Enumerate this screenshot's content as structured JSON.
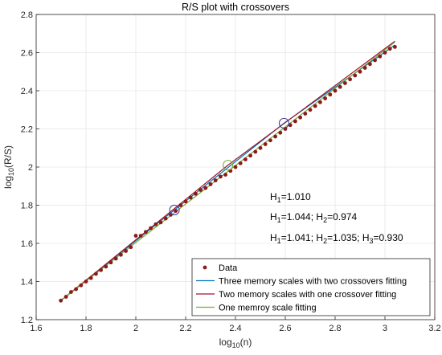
{
  "chart_data": {
    "type": "scatter",
    "title": "R/S plot with crossovers",
    "xlabel": {
      "base": "log",
      "sub": "10",
      "rest": "(n)"
    },
    "ylabel": {
      "base": "log",
      "sub": "10",
      "rest": "(R/S)"
    },
    "xlim": [
      1.6,
      3.2
    ],
    "ylim": [
      1.2,
      2.8
    ],
    "xticks": [
      1.6,
      1.8,
      2.0,
      2.2,
      2.4,
      2.6,
      2.8,
      3.0,
      3.2
    ],
    "yticks": [
      1.2,
      1.4,
      1.6,
      1.8,
      2.0,
      2.2,
      2.4,
      2.6,
      2.8
    ],
    "xtick_labels": [
      "1.6",
      "1.8",
      "2",
      "2.2",
      "2.4",
      "2.6",
      "2.8",
      "3",
      "3.2"
    ],
    "ytick_labels": [
      "1.2",
      "1.4",
      "1.6",
      "1.8",
      "2",
      "2.2",
      "2.4",
      "2.6",
      "2.8"
    ],
    "grid": true,
    "legend_position": "bottom-right",
    "series": [
      {
        "name": "Data",
        "style": "marker",
        "color": "#8B1A1A",
        "x": [
          1.699,
          1.72,
          1.74,
          1.76,
          1.78,
          1.8,
          1.82,
          1.84,
          1.86,
          1.88,
          1.9,
          1.92,
          1.94,
          1.96,
          1.98,
          2.0,
          2.02,
          2.04,
          2.06,
          2.08,
          2.1,
          2.12,
          2.14,
          2.16,
          2.18,
          2.2,
          2.22,
          2.24,
          2.26,
          2.28,
          2.3,
          2.32,
          2.34,
          2.36,
          2.38,
          2.4,
          2.42,
          2.44,
          2.46,
          2.48,
          2.5,
          2.52,
          2.54,
          2.56,
          2.58,
          2.6,
          2.62,
          2.64,
          2.66,
          2.68,
          2.7,
          2.72,
          2.74,
          2.76,
          2.78,
          2.8,
          2.82,
          2.84,
          2.86,
          2.88,
          2.9,
          2.92,
          2.94,
          2.96,
          2.98,
          3.0,
          3.02,
          3.04
        ],
        "y": [
          1.3,
          1.32,
          1.345,
          1.36,
          1.38,
          1.4,
          1.418,
          1.44,
          1.46,
          1.478,
          1.5,
          1.52,
          1.54,
          1.56,
          1.58,
          1.64,
          1.64,
          1.66,
          1.68,
          1.7,
          1.71,
          1.73,
          1.75,
          1.77,
          1.8,
          1.82,
          1.84,
          1.86,
          1.88,
          1.89,
          1.91,
          1.93,
          1.95,
          1.96,
          1.98,
          2.0,
          2.02,
          2.04,
          2.06,
          2.08,
          2.1,
          2.12,
          2.14,
          2.16,
          2.18,
          2.2,
          2.22,
          2.24,
          2.26,
          2.28,
          2.3,
          2.32,
          2.34,
          2.36,
          2.38,
          2.4,
          2.42,
          2.44,
          2.46,
          2.48,
          2.5,
          2.52,
          2.54,
          2.56,
          2.58,
          2.6,
          2.62,
          2.63
        ]
      },
      {
        "name": "Three memory scales with two crossovers fitting",
        "style": "line",
        "color": "#0072BD",
        "x": [
          1.699,
          2.155,
          2.595,
          3.04
        ],
        "y": [
          1.3,
          1.775,
          2.23,
          2.64
        ]
      },
      {
        "name": "Two memory scales with one crossover fitting",
        "style": "line",
        "color": "#A2142F",
        "x": [
          1.699,
          2.37,
          3.04
        ],
        "y": [
          1.3,
          2.01,
          2.66
        ]
      },
      {
        "name": "One memroy scale fitting",
        "style": "line",
        "color": "#77AC30",
        "x": [
          1.699,
          3.04
        ],
        "y": [
          1.3,
          2.655
        ]
      }
    ],
    "crossover_markers": [
      {
        "x": 2.155,
        "y": 1.775,
        "color": "#3F3FA0"
      },
      {
        "x": 2.595,
        "y": 2.23,
        "color": "#3F3FA0"
      },
      {
        "x": 2.37,
        "y": 2.01,
        "color": "#77AC30"
      }
    ],
    "annotations": [
      [
        {
          "t": "H",
          "s": "1",
          "r": "=1.010"
        }
      ],
      [
        {
          "t": "H",
          "s": "1",
          "r": "=1.044; "
        },
        {
          "t": "H",
          "s": "2",
          "r": "=0.974"
        }
      ],
      [
        {
          "t": "H",
          "s": "1",
          "r": "=1.041; "
        },
        {
          "t": "H",
          "s": "2",
          "r": "=1.035; "
        },
        {
          "t": "H",
          "s": "3",
          "r": "=0.930"
        }
      ]
    ]
  }
}
